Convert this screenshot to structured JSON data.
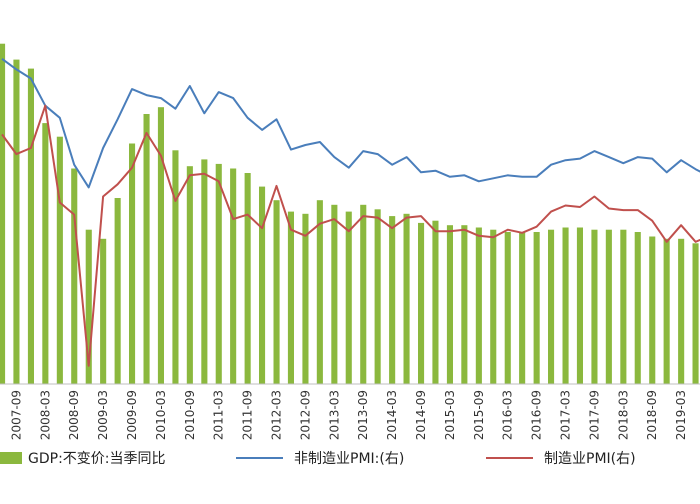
{
  "chart_data": {
    "type": "bar",
    "title": "",
    "xlabel": "",
    "ylabel": "",
    "categories": [
      "2007-06",
      "2007-09",
      "2007-12",
      "2008-03",
      "2008-06",
      "2008-09",
      "2008-12",
      "2009-03",
      "2009-06",
      "2009-09",
      "2009-12",
      "2010-03",
      "2010-06",
      "2010-09",
      "2010-12",
      "2011-03",
      "2011-06",
      "2011-09",
      "2011-12",
      "2012-03",
      "2012-06",
      "2012-09",
      "2012-12",
      "2013-03",
      "2013-06",
      "2013-09",
      "2013-12",
      "2014-03",
      "2014-06",
      "2014-09",
      "2014-12",
      "2015-03",
      "2015-06",
      "2015-09",
      "2015-12",
      "2016-03",
      "2016-06",
      "2016-09",
      "2016-12",
      "2017-03",
      "2017-06",
      "2017-09",
      "2017-12",
      "2018-03",
      "2018-06",
      "2018-09",
      "2018-12",
      "2019-03",
      "2019-06",
      "2019-09"
    ],
    "x_tick_labels": [
      "2007-09",
      "2008-03",
      "2008-09",
      "2009-03",
      "2009-09",
      "2010-03",
      "2010-09",
      "2011-03",
      "2011-09",
      "2012-03",
      "2012-09",
      "2013-03",
      "2013-09",
      "2014-03",
      "2014-09",
      "2015-03",
      "2015-09",
      "2016-03",
      "2016-09",
      "2017-03",
      "2017-09",
      "2018-03",
      "2018-09",
      "2019-03",
      "2019-09"
    ],
    "series": [
      {
        "name": "GDP:不变价:当季同比",
        "type": "bar",
        "color": "#8bb83e",
        "values": [
          15.0,
          14.3,
          13.9,
          11.5,
          10.9,
          9.5,
          6.8,
          6.4,
          8.2,
          10.6,
          11.9,
          12.2,
          10.3,
          9.6,
          9.9,
          9.7,
          9.5,
          9.3,
          8.7,
          8.1,
          7.6,
          7.5,
          8.1,
          7.9,
          7.6,
          7.9,
          7.7,
          7.4,
          7.5,
          7.1,
          7.2,
          7.0,
          7.0,
          6.9,
          6.8,
          6.7,
          6.7,
          6.7,
          6.8,
          6.9,
          6.9,
          6.8,
          6.8,
          6.8,
          6.7,
          6.5,
          6.4,
          6.4,
          6.2,
          6.0
        ]
      },
      {
        "name": "非制造业PMI:(右)",
        "type": "line",
        "axis": "right",
        "color": "#4a7ebb",
        "values": [
          61.5,
          60.8,
          60.2,
          58.4,
          57.6,
          54.5,
          53.0,
          55.6,
          57.5,
          59.5,
          59.1,
          58.9,
          58.2,
          59.7,
          57.9,
          59.3,
          58.9,
          57.6,
          56.8,
          57.5,
          55.5,
          55.8,
          56.0,
          55.0,
          54.3,
          55.4,
          55.2,
          54.5,
          55.0,
          54.0,
          54.1,
          53.7,
          53.8,
          53.4,
          53.6,
          53.8,
          53.7,
          53.7,
          54.5,
          54.8,
          54.9,
          55.4,
          55.0,
          54.6,
          55.0,
          54.9,
          54.0,
          54.8,
          54.2,
          53.7
        ]
      },
      {
        "name": "制造业PMI(右)",
        "type": "line",
        "axis": "right",
        "color": "#c0504d",
        "values": [
          56.5,
          55.2,
          55.6,
          58.4,
          52.0,
          51.2,
          41.2,
          52.4,
          53.2,
          54.3,
          56.6,
          55.1,
          52.1,
          53.8,
          53.9,
          53.4,
          50.9,
          51.2,
          50.3,
          53.1,
          50.2,
          49.8,
          50.6,
          50.9,
          50.1,
          51.1,
          51.0,
          50.3,
          51.0,
          51.1,
          50.1,
          50.1,
          50.2,
          49.8,
          49.7,
          50.2,
          50.0,
          50.4,
          51.4,
          51.8,
          51.7,
          52.4,
          51.6,
          51.5,
          51.5,
          50.8,
          49.4,
          50.5,
          49.4,
          49.8
        ]
      }
    ],
    "left_axis_range": [
      0,
      16
    ],
    "right_axis_range": [
      40,
      64
    ],
    "grid": false,
    "legend_position": "bottom"
  }
}
